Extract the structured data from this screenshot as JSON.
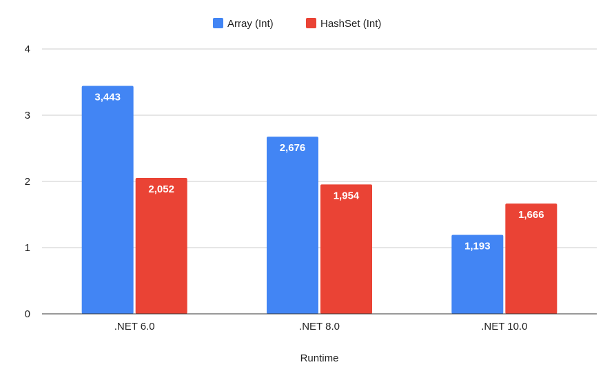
{
  "chart_data": {
    "type": "bar",
    "title": "",
    "xlabel": "Runtime",
    "ylabel": "",
    "categories": [
      ".NET 6.0",
      ".NET 8.0",
      ".NET 10.0"
    ],
    "series": [
      {
        "name": "Array (Int)",
        "values": [
          3.443,
          2.676,
          1.193
        ],
        "labels": [
          "3,443",
          "2,676",
          "1,193"
        ],
        "color": "#4285f4"
      },
      {
        "name": "HashSet (Int)",
        "values": [
          2.052,
          1.954,
          1.666
        ],
        "labels": [
          "2,052",
          "1,954",
          "1,666"
        ],
        "color": "#ea4335"
      }
    ],
    "ylim": [
      0,
      4
    ],
    "yticks": [
      "0",
      "1",
      "2",
      "3",
      "4"
    ],
    "grid": true,
    "legend_position": "top-center"
  }
}
